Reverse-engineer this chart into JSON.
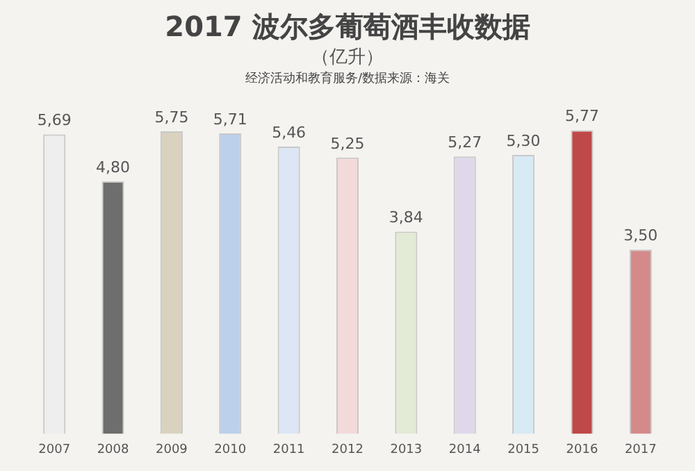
{
  "chart_data": {
    "type": "bar",
    "title": "2017 波尔多葡萄酒丰收数据",
    "subtitle": "（亿升）",
    "annotations": [
      "经济活动和教育服务/数据来源：海关"
    ],
    "categories": [
      "2007",
      "2008",
      "2009",
      "2010",
      "2011",
      "2012",
      "2013",
      "2014",
      "2015",
      "2016",
      "2017"
    ],
    "values": [
      5.69,
      4.8,
      5.75,
      5.71,
      5.46,
      5.25,
      3.84,
      5.27,
      5.3,
      5.77,
      3.5
    ],
    "colors": [
      "#eeeeee",
      "#6e6e6e",
      "#d9d2bf",
      "#bcd0ec",
      "#dce6f4",
      "#f2dada",
      "#e3ead5",
      "#e0d8ea",
      "#d8eaf4",
      "#bf4848",
      "#d48a8a"
    ],
    "value_labels": [
      "5,69",
      "4,80",
      "5,75",
      "5,71",
      "5,46",
      "5,25",
      "3,84",
      "5,27",
      "5,30",
      "5,77",
      "3,50"
    ],
    "grid": false,
    "legend": false
  }
}
